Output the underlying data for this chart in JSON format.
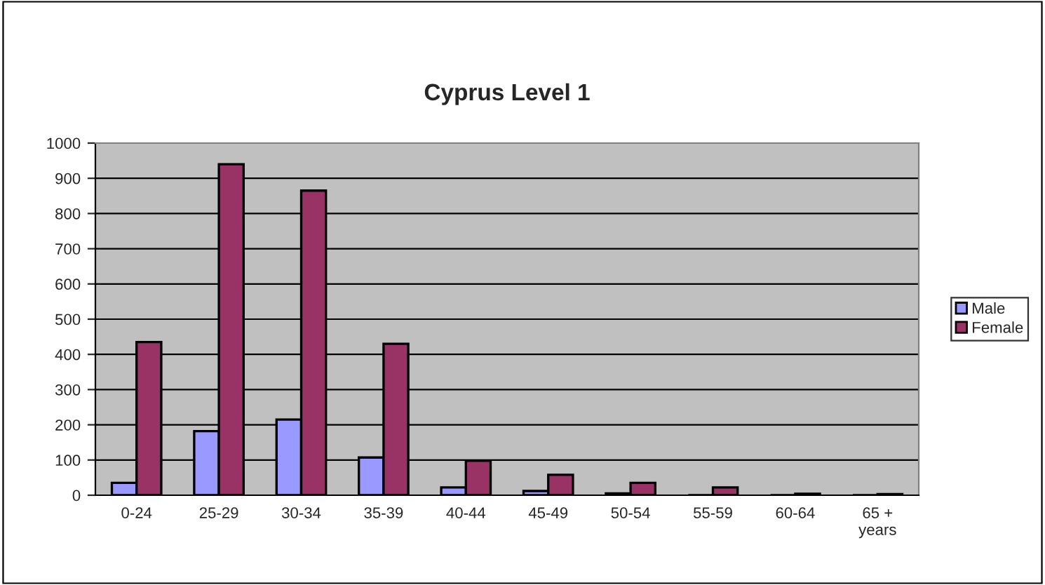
{
  "chart_data": {
    "type": "bar",
    "title": "Cyprus Level 1",
    "categories": [
      "0-24",
      "25-29",
      "30-34",
      "35-39",
      "40-44",
      "45-49",
      "50-54",
      "55-59",
      "60-64",
      "65 +\nyears"
    ],
    "series": [
      {
        "name": "Male",
        "color": "#9999ff",
        "values": [
          35,
          182,
          215,
          107,
          22,
          12,
          5,
          null,
          null,
          null
        ]
      },
      {
        "name": "Female",
        "color": "#993366",
        "values": [
          435,
          940,
          865,
          430,
          98,
          58,
          35,
          22,
          4,
          3
        ]
      }
    ],
    "ylim": [
      0,
      1000
    ],
    "yticks": [
      0,
      100,
      200,
      300,
      400,
      500,
      600,
      700,
      800,
      900,
      1000
    ],
    "grid": "y",
    "legend": "right"
  }
}
